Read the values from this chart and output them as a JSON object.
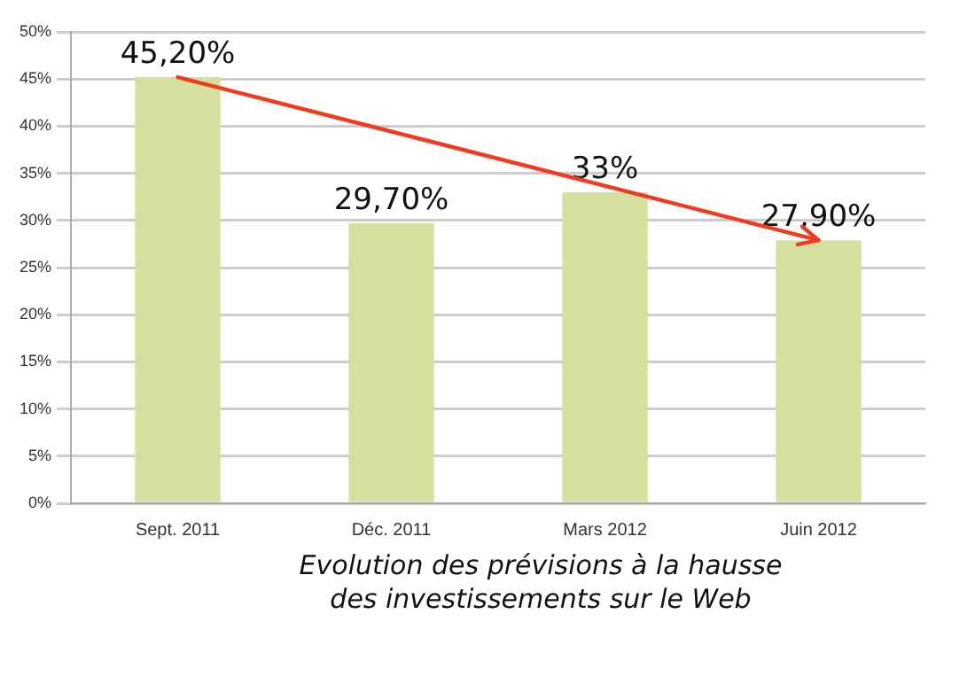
{
  "chart_data": {
    "type": "bar",
    "xlabel": "Evolution des prévisions à la hausse des investissements sur le Web",
    "categories": [
      "Sept. 2011",
      "Déc. 2011",
      "Mars 2012",
      "Juin 2012"
    ],
    "values": [
      45.2,
      29.7,
      33,
      27.9
    ],
    "value_labels": [
      "45,20%",
      "29,70%",
      "33%",
      "27,90%"
    ],
    "color": "#d4e09f",
    "ylim": [
      0,
      50
    ],
    "yticks": [
      {
        "value": 0,
        "label": "0%"
      },
      {
        "value": 5,
        "label": "5%"
      },
      {
        "value": 10,
        "label": "10%"
      },
      {
        "value": 15,
        "label": "15%"
      },
      {
        "value": 20,
        "label": "20%"
      },
      {
        "value": 25,
        "label": "25%"
      },
      {
        "value": 30,
        "label": "30%"
      },
      {
        "value": 35,
        "label": "35%"
      },
      {
        "value": 40,
        "label": "40%"
      },
      {
        "value": 45,
        "label": "45%"
      },
      {
        "value": 50,
        "label": "50%"
      }
    ],
    "grid": "y",
    "legend": false
  }
}
